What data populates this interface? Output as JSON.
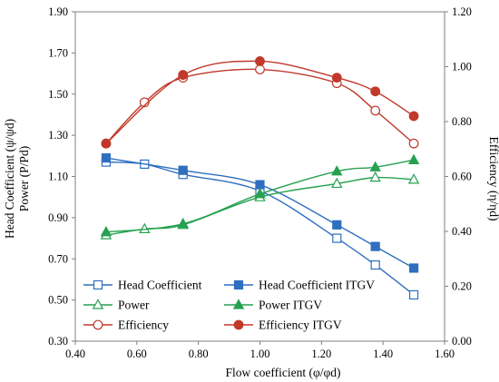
{
  "chart_data": {
    "type": "line",
    "xlabel": "Flow coefficient (φ/φd)",
    "ylabel_left_line1": "Head Coefficient (ψ/ψd)",
    "ylabel_left_line2": "Power (P/Pd)",
    "ylabel_right": "Efficiency (η/ηd)",
    "xlim": [
      0.4,
      1.6
    ],
    "xticks": [
      "0.40",
      "0.60",
      "0.80",
      "1.00",
      "1.20",
      "1.40",
      "1.60"
    ],
    "ylim_left": [
      0.3,
      1.9
    ],
    "yticks_left": [
      "0.30",
      "0.50",
      "0.70",
      "0.90",
      "1.10",
      "1.30",
      "1.50",
      "1.70",
      "1.90"
    ],
    "ylim_right": [
      0,
      1.2
    ],
    "yticks_right": [
      "0.00",
      "0.20",
      "0.40",
      "0.60",
      "0.80",
      "1.00",
      "1.20"
    ],
    "grid": false,
    "legend_position": "bottom-center",
    "colors": {
      "head": "#2e6fbf",
      "power": "#27a150",
      "efficiency": "#c0392b"
    },
    "series": [
      {
        "name": "Head Coefficient",
        "axis": "left",
        "marker": "square-open",
        "color_key": "head",
        "x": [
          0.5,
          0.625,
          0.75,
          1.0,
          1.25,
          1.375,
          1.5
        ],
        "y": [
          1.17,
          1.16,
          1.11,
          1.03,
          0.8,
          0.67,
          0.525
        ]
      },
      {
        "name": "Head Coefficient ITGV",
        "axis": "left",
        "marker": "square-filled",
        "color_key": "head",
        "x": [
          0.5,
          0.75,
          1.0,
          1.25,
          1.375,
          1.5
        ],
        "y": [
          1.19,
          1.13,
          1.06,
          0.865,
          0.76,
          0.655
        ]
      },
      {
        "name": "Power",
        "axis": "left",
        "marker": "triangle-open",
        "color_key": "power",
        "x": [
          0.5,
          0.625,
          0.75,
          1.0,
          1.25,
          1.375,
          1.5
        ],
        "y": [
          0.815,
          0.845,
          0.865,
          1.0,
          1.065,
          1.095,
          1.085
        ]
      },
      {
        "name": "Power ITGV",
        "axis": "left",
        "marker": "triangle-filled",
        "color_key": "power",
        "x": [
          0.5,
          0.75,
          1.0,
          1.25,
          1.375,
          1.5
        ],
        "y": [
          0.83,
          0.87,
          1.015,
          1.125,
          1.145,
          1.18
        ]
      },
      {
        "name": "Efficiency",
        "axis": "right",
        "marker": "circle-open",
        "color_key": "efficiency",
        "x": [
          0.5,
          0.625,
          0.75,
          1.0,
          1.25,
          1.375,
          1.5
        ],
        "y": [
          0.72,
          0.87,
          0.96,
          0.99,
          0.94,
          0.84,
          0.72
        ]
      },
      {
        "name": "Efficiency ITGV",
        "axis": "right",
        "marker": "circle-filled",
        "color_key": "efficiency",
        "x": [
          0.5,
          0.75,
          1.0,
          1.25,
          1.375,
          1.5
        ],
        "y": [
          0.72,
          0.97,
          1.02,
          0.96,
          0.91,
          0.82
        ]
      }
    ]
  }
}
